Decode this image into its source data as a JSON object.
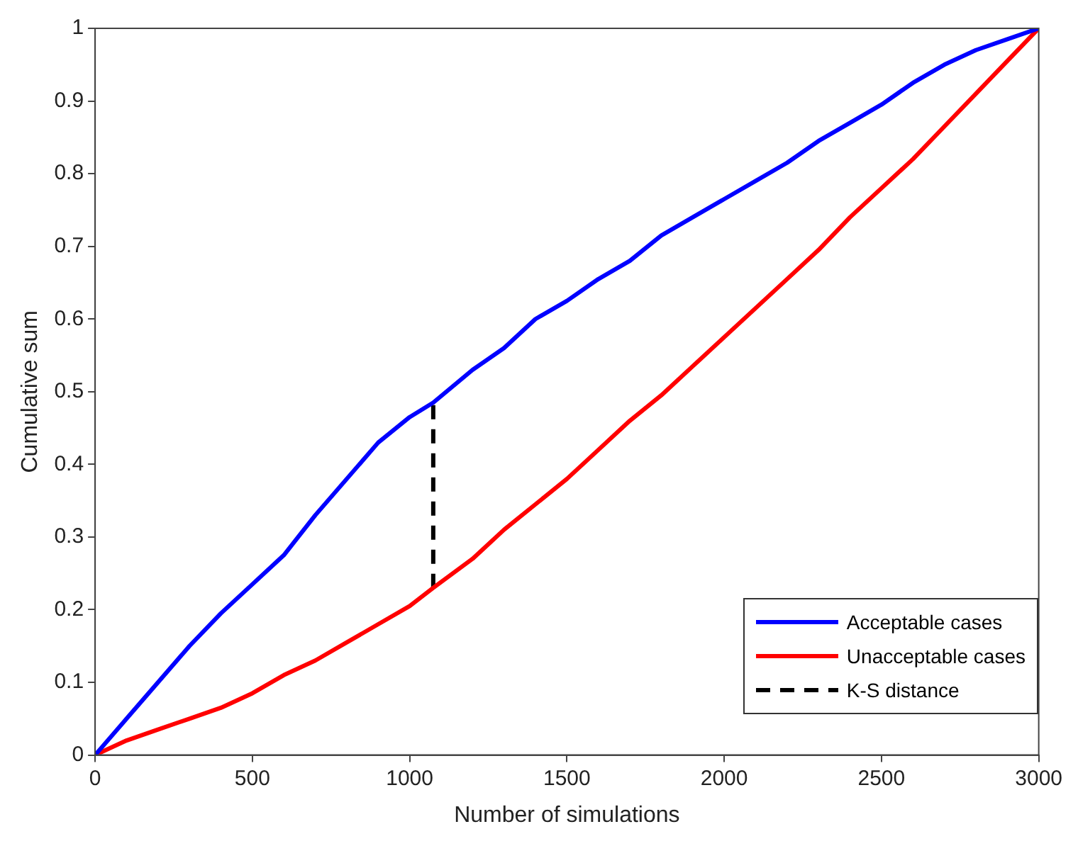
{
  "chart_data": {
    "type": "line",
    "xlabel": "Number of simulations",
    "ylabel": "Cumulative sum",
    "xlim": [
      0,
      3000
    ],
    "xticks": [
      0,
      500,
      1000,
      1500,
      2000,
      2500,
      3000
    ],
    "ylim": [
      0,
      1
    ],
    "yticks": [
      0,
      0.1,
      0.2,
      0.3,
      0.4,
      0.5,
      0.6,
      0.7,
      0.8,
      0.9,
      1
    ],
    "grid": false,
    "legend": "bottom right",
    "marker": "none",
    "series": [
      {
        "name": "Acceptable cases",
        "color": "#0000ff",
        "line_style": "solid",
        "x": [
          0,
          100,
          200,
          300,
          400,
          500,
          600,
          700,
          800,
          900,
          1000,
          1075,
          1200,
          1300,
          1400,
          1500,
          1600,
          1700,
          1800,
          1900,
          2000,
          2100,
          2200,
          2300,
          2400,
          2500,
          2600,
          2700,
          2800,
          2900,
          3000
        ],
        "values": [
          0,
          0.05,
          0.1,
          0.15,
          0.195,
          0.235,
          0.275,
          0.33,
          0.38,
          0.43,
          0.465,
          0.485,
          0.53,
          0.56,
          0.6,
          0.625,
          0.655,
          0.68,
          0.715,
          0.74,
          0.765,
          0.79,
          0.815,
          0.845,
          0.87,
          0.895,
          0.925,
          0.95,
          0.97,
          0.985,
          1
        ]
      },
      {
        "name": "Unacceptable cases",
        "color": "#ff0000",
        "line_style": "solid",
        "x": [
          0,
          100,
          200,
          300,
          400,
          500,
          600,
          700,
          800,
          900,
          1000,
          1075,
          1200,
          1300,
          1400,
          1500,
          1600,
          1700,
          1800,
          1900,
          2000,
          2100,
          2200,
          2300,
          2400,
          2500,
          2600,
          2700,
          2800,
          2900,
          3000
        ],
        "values": [
          0,
          0.02,
          0.035,
          0.05,
          0.065,
          0.085,
          0.11,
          0.13,
          0.155,
          0.18,
          0.205,
          0.23,
          0.27,
          0.31,
          0.345,
          0.38,
          0.42,
          0.46,
          0.495,
          0.535,
          0.575,
          0.615,
          0.655,
          0.695,
          0.74,
          0.78,
          0.82,
          0.865,
          0.91,
          0.955,
          1
        ]
      },
      {
        "name": "K-S distance",
        "color": "#000000",
        "line_style": "dashed",
        "x": [
          1075,
          1075
        ],
        "values": [
          0.23,
          0.485
        ]
      }
    ]
  }
}
